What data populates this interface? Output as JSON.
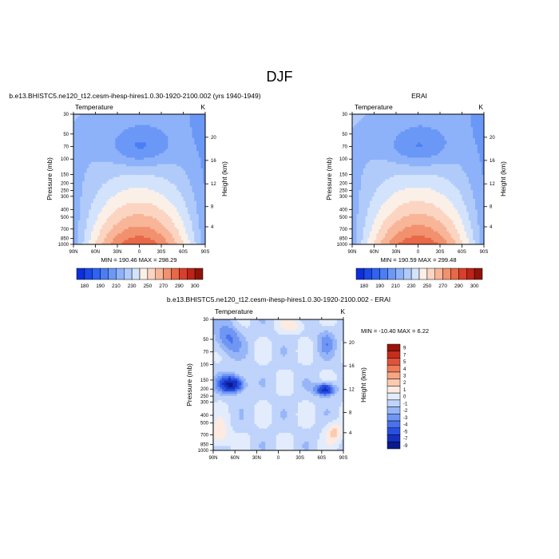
{
  "page_title": "DJF",
  "chart_data": [
    {
      "type": "heatmap",
      "title": "b.e13.BHISTC5.ne120_t12.cesm-ihesp-hires1.0.30-1920-2100.002 (yrs 1940-1949)",
      "left_label": "Temperature",
      "right_label": "K",
      "xlabel": "",
      "ylabel": "Pressure (mb)",
      "y2label": "Height (km)",
      "x_ticks": [
        "90N",
        "60N",
        "30N",
        "0",
        "30S",
        "60S",
        "90S"
      ],
      "y_ticks": [
        "30",
        "50",
        "70",
        "100",
        "150",
        "200",
        "250",
        "300",
        "400",
        "500",
        "700",
        "850",
        "1000"
      ],
      "y2_ticks": [
        "20",
        "16",
        "12",
        "8",
        "4"
      ],
      "min_max_text": "MIN = 190.46   MAX = 298.29",
      "min": 190.46,
      "max": 298.29,
      "colorbar_labels": [
        "180",
        "190",
        "210",
        "230",
        "250",
        "270",
        "290",
        "300"
      ]
    },
    {
      "type": "heatmap",
      "title": "ERAI",
      "left_label": "Temperature",
      "right_label": "K",
      "xlabel": "",
      "ylabel": "Pressure (mb)",
      "y2label": "Height (km)",
      "x_ticks": [
        "90N",
        "60N",
        "30N",
        "0",
        "30S",
        "60S",
        "90S"
      ],
      "y_ticks": [
        "30",
        "50",
        "70",
        "100",
        "150",
        "200",
        "250",
        "300",
        "400",
        "500",
        "700",
        "850",
        "1000"
      ],
      "y2_ticks": [
        "20",
        "16",
        "12",
        "8",
        "4"
      ],
      "min_max_text": "MIN = 190.59   MAX = 299.48",
      "min": 190.59,
      "max": 299.48,
      "colorbar_labels": [
        "180",
        "190",
        "210",
        "230",
        "250",
        "270",
        "290",
        "300"
      ]
    },
    {
      "type": "heatmap",
      "title": "b.e13.BHISTC5.ne120_t12.cesm-ihesp-hires1.0.30-1920-2100.002 - ERAI",
      "left_label": "Temperature",
      "right_label": "K",
      "xlabel": "",
      "ylabel": "Pressure (mb)",
      "y2label": "Height (km)",
      "x_ticks": [
        "90N",
        "60N",
        "30N",
        "0",
        "30S",
        "60S",
        "90S"
      ],
      "y_ticks": [
        "30",
        "50",
        "70",
        "100",
        "150",
        "200",
        "250",
        "300",
        "400",
        "500",
        "700",
        "850",
        "1000"
      ],
      "y2_ticks": [
        "20",
        "16",
        "12",
        "8",
        "4"
      ],
      "min_max_text": "MIN = -10.40  MAX =   6.22",
      "min": -10.4,
      "max": 6.22,
      "colorbar_labels": [
        "9",
        "7",
        "5",
        "4",
        "3",
        "2",
        "1",
        "0",
        "-1",
        "-2",
        "-3",
        "-4",
        "-5",
        "-7",
        "-9"
      ]
    }
  ],
  "colors": {
    "temp_scale": [
      "#0d2ed9",
      "#1b48e6",
      "#2f63f0",
      "#4a7ef5",
      "#6b98f7",
      "#8db2f9",
      "#b0cbfa",
      "#d3e3fc",
      "#fbf0e8",
      "#fbd5c2",
      "#f8b598",
      "#f1916e",
      "#e86848",
      "#d8402b",
      "#bc2418",
      "#8f1408"
    ],
    "diff_scale": [
      "#0a1a8c",
      "#1530c0",
      "#2850e0",
      "#4a72ee",
      "#7096f4",
      "#97b6f8",
      "#bfd3fb",
      "#e2ecfd",
      "#fdeae0",
      "#fbcab0",
      "#f7a583",
      "#ee7c58",
      "#e0523a",
      "#c52d1d",
      "#99140a"
    ]
  }
}
